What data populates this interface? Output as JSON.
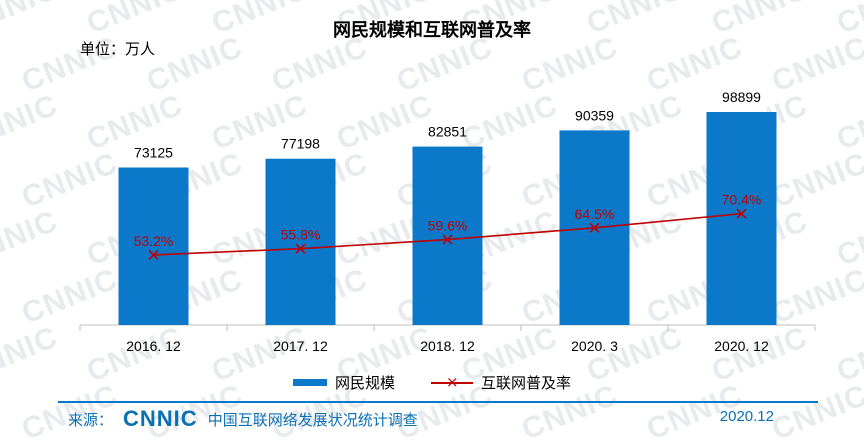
{
  "watermark_text": "CNNIC",
  "chart_data": {
    "type": "bar",
    "title": "网民规模和互联网普及率",
    "unit_label": "单位：万人",
    "categories": [
      "2016. 12",
      "2017. 12",
      "2018. 12",
      "2020. 3",
      "2020. 12"
    ],
    "series": [
      {
        "name": "网民规模",
        "type": "bar",
        "values": [
          73125,
          77198,
          82851,
          90359,
          98899
        ],
        "color": "#0b78c9"
      },
      {
        "name": "互联网普及率",
        "type": "line",
        "values": [
          53.2,
          55.8,
          59.6,
          64.5,
          70.4
        ],
        "value_labels": [
          "53.2%",
          "55.8%",
          "59.6%",
          "64.5%",
          "70.4%"
        ],
        "color": "#c00000"
      }
    ],
    "legend": "bottom"
  },
  "footer": {
    "source_label": "来源：",
    "logo_text": "CNNIC",
    "org": "中国互联网络发展状况统计调查",
    "date": "2020.12"
  }
}
